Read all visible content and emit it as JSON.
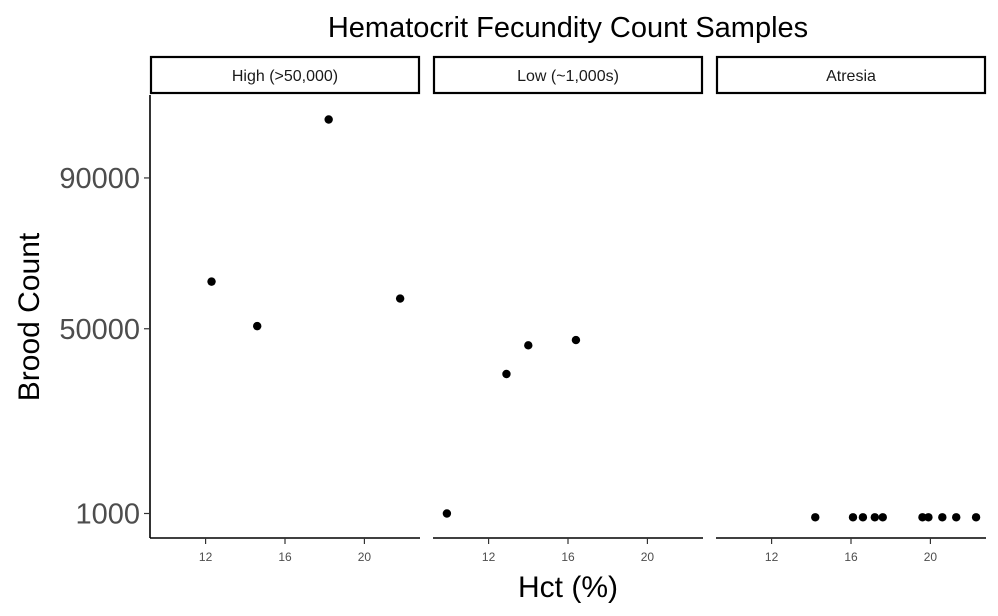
{
  "chart_data": {
    "type": "scatter",
    "title": "Hematocrit Fecundity Count Samples",
    "xlabel": "Hct (%)",
    "ylabel": "Brood Count",
    "x_ticks": [
      12,
      16,
      20
    ],
    "y_ticks": [
      1000,
      50000,
      90000
    ],
    "xlim": [
      9.2,
      22.8
    ],
    "ylim": [
      -5500,
      112000
    ],
    "grid": false,
    "legend": "none",
    "point_color": "#000000",
    "panels": [
      {
        "label": "High (>50,000)",
        "points": [
          {
            "x": 12.3,
            "y": 62500
          },
          {
            "x": 14.6,
            "y": 50700
          },
          {
            "x": 18.2,
            "y": 105500
          },
          {
            "x": 21.8,
            "y": 58000
          }
        ]
      },
      {
        "label": "Low (~1,000s)",
        "points": [
          {
            "x": 9.9,
            "y": 1000
          },
          {
            "x": 12.9,
            "y": 38000
          },
          {
            "x": 14.0,
            "y": 45600
          },
          {
            "x": 16.4,
            "y": 47000
          }
        ]
      },
      {
        "label": "Atresia",
        "points": [
          {
            "x": 14.2,
            "y": 0
          },
          {
            "x": 16.1,
            "y": 0
          },
          {
            "x": 16.6,
            "y": 0
          },
          {
            "x": 17.2,
            "y": 0
          },
          {
            "x": 17.6,
            "y": 0
          },
          {
            "x": 19.6,
            "y": 0
          },
          {
            "x": 19.9,
            "y": 0
          },
          {
            "x": 20.6,
            "y": 0
          },
          {
            "x": 21.3,
            "y": 0
          },
          {
            "x": 22.3,
            "y": 0
          }
        ]
      }
    ]
  }
}
